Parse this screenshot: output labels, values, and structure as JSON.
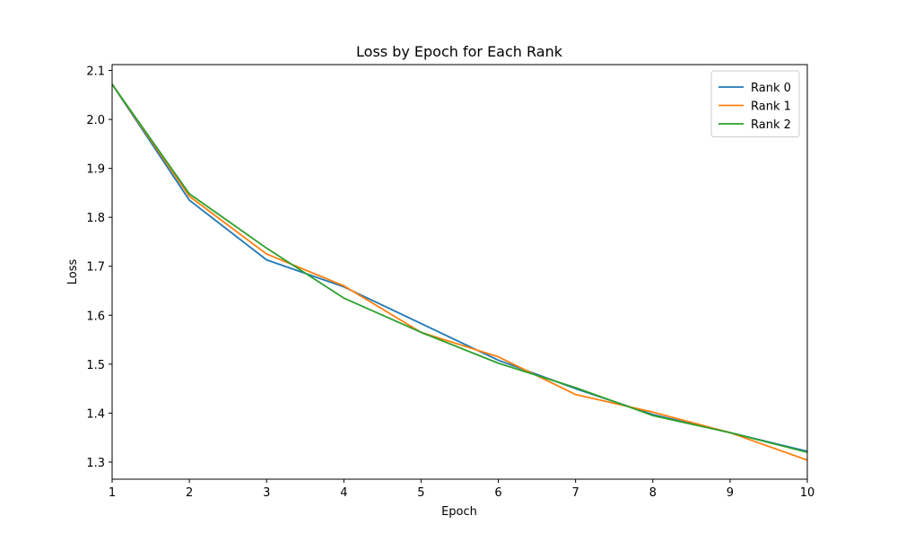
{
  "chart_data": {
    "type": "line",
    "title": "Loss by Epoch for Each Rank",
    "xlabel": "Epoch",
    "ylabel": "Loss",
    "x": [
      1,
      2,
      3,
      4,
      5,
      6,
      7,
      8,
      9,
      10
    ],
    "xlim": [
      1,
      10
    ],
    "ylim": [
      1.265,
      2.112
    ],
    "xticks": [
      "1",
      "2",
      "3",
      "4",
      "5",
      "6",
      "7",
      "8",
      "9",
      "10"
    ],
    "yticks": [
      "1.3",
      "1.4",
      "1.5",
      "1.6",
      "1.7",
      "1.8",
      "1.9",
      "2.0",
      "2.1"
    ],
    "grid": false,
    "legend_position": "top-right",
    "series": [
      {
        "name": "Rank 0",
        "color": "#1f77b4",
        "values": [
          2.072,
          1.835,
          1.713,
          1.658,
          1.583,
          1.508,
          1.45,
          1.397,
          1.36,
          1.322
        ]
      },
      {
        "name": "Rank 1",
        "color": "#ff7f0e",
        "values": [
          2.072,
          1.843,
          1.725,
          1.66,
          1.565,
          1.515,
          1.438,
          1.402,
          1.36,
          1.304
        ]
      },
      {
        "name": "Rank 2",
        "color": "#2ca02c",
        "values": [
          2.072,
          1.848,
          1.737,
          1.635,
          1.565,
          1.502,
          1.452,
          1.395,
          1.36,
          1.32
        ]
      }
    ]
  }
}
